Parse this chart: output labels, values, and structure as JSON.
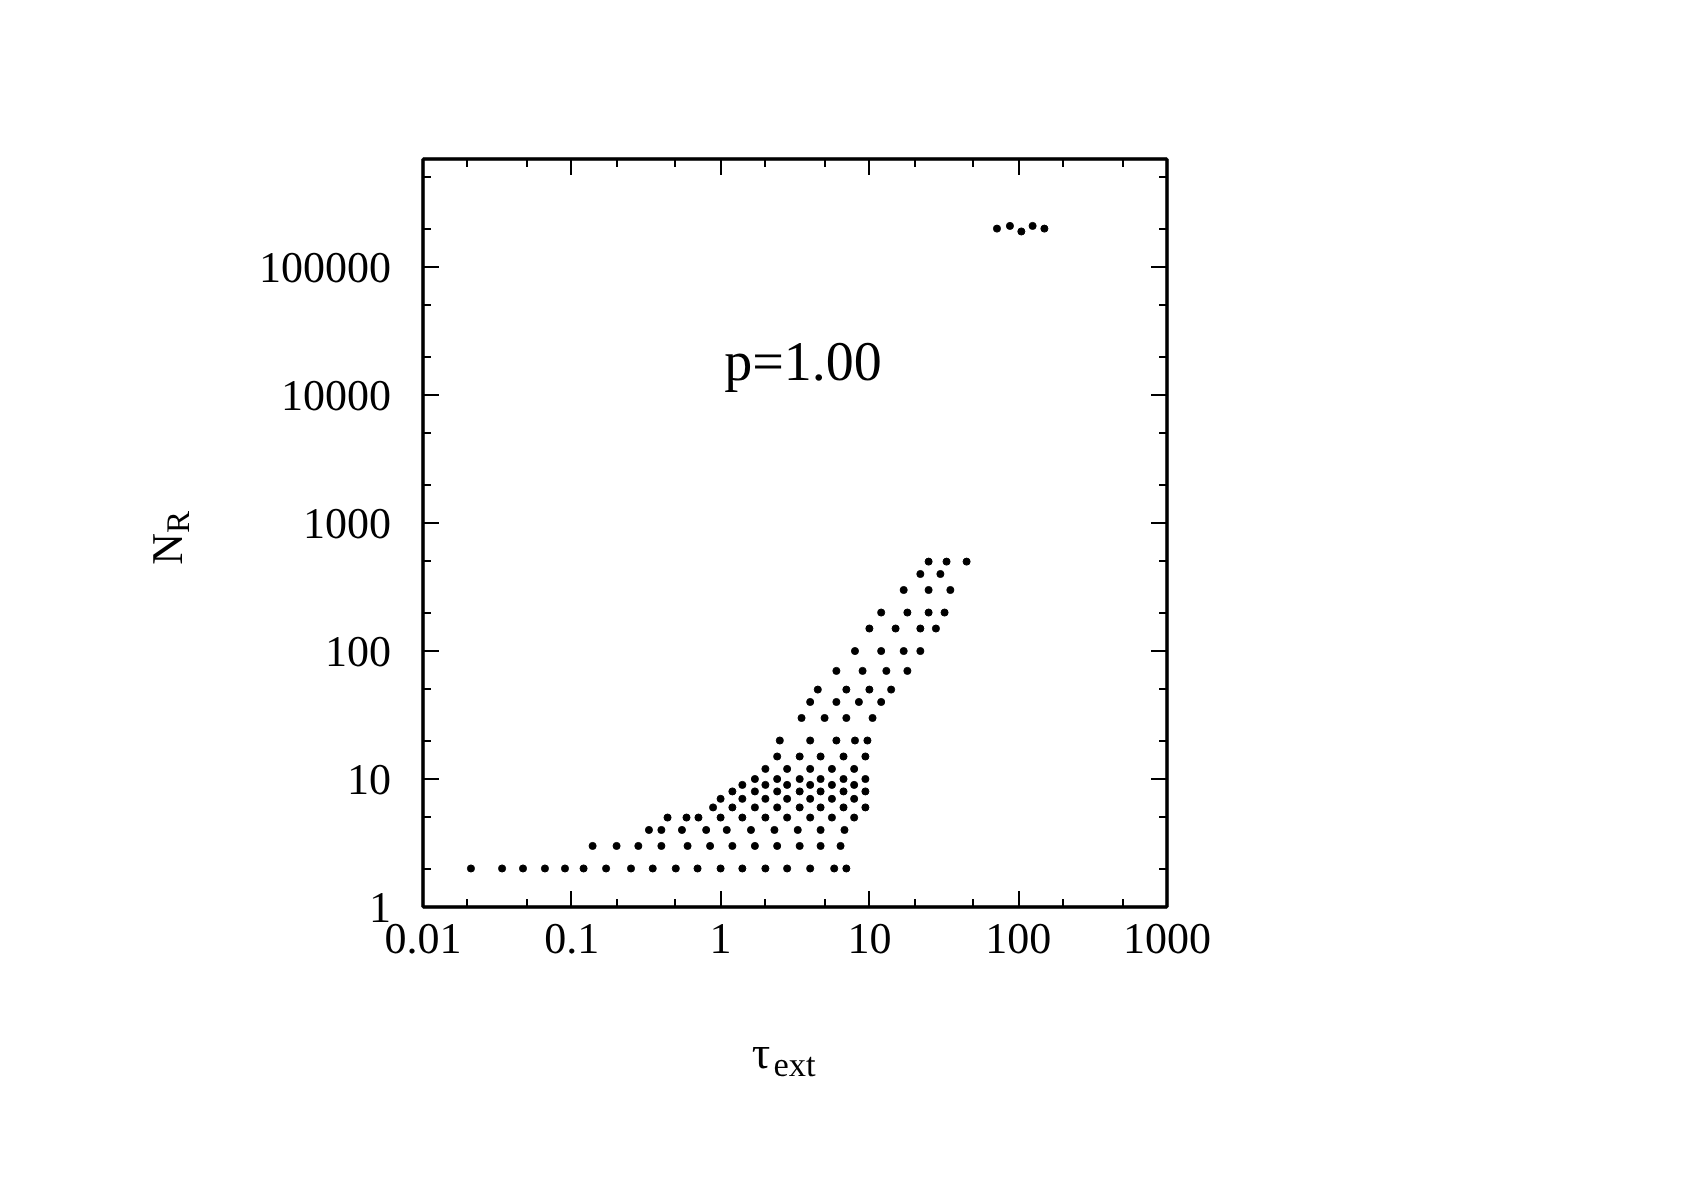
{
  "chart_data": {
    "type": "scatter",
    "xlabel": "τ$_{ext}$",
    "ylabel": "N$_{R}$",
    "annotations": [
      "p=1.00"
    ],
    "log": "xy",
    "marker": "circle",
    "xlim": [
      0.01,
      1000
    ],
    "ylim": [
      1,
      700000
    ],
    "xticks": [
      0.01,
      {
        "value": 0.02,
        "label": null
      },
      {
        "value": 0.05,
        "label": null
      },
      0.1,
      {
        "value": 0.2,
        "label": null
      },
      {
        "value": 0.5,
        "label": null
      },
      1,
      {
        "value": 2,
        "label": null
      },
      {
        "value": 5,
        "label": null
      },
      10,
      {
        "value": 20,
        "label": null
      },
      {
        "value": 50,
        "label": null
      },
      100,
      {
        "value": 200,
        "label": null
      },
      {
        "value": 500,
        "label": null
      },
      1000
    ],
    "yticks": [
      1,
      {
        "value": 2,
        "label": null
      },
      {
        "value": 5,
        "label": null
      },
      10,
      {
        "value": 20,
        "label": null
      },
      {
        "value": 50,
        "label": null
      },
      100,
      {
        "value": 200,
        "label": null
      },
      {
        "value": 500,
        "label": null
      },
      1000,
      {
        "value": 2000,
        "label": null
      },
      {
        "value": 5000,
        "label": null
      },
      10000,
      {
        "value": 20000,
        "label": null
      },
      {
        "value": 50000,
        "label": null
      },
      100000,
      {
        "value": 200000,
        "label": null
      },
      {
        "value": 500000,
        "label": null
      }
    ],
    "series": [
      {
        "color": "#000000",
        "x": [
          0.021,
          0.034,
          0.047,
          0.066,
          0.09,
          0.12,
          0.17,
          0.25,
          0.35,
          0.5,
          0.7,
          1,
          1.4,
          2,
          2.8,
          4,
          5.8,
          7,
          0.138,
          0.2,
          0.28,
          0.4,
          0.6,
          0.85,
          1.2,
          1.7,
          2.4,
          3.4,
          4.7,
          6.4,
          0.33,
          0.4,
          0.55,
          0.8,
          1.1,
          1.6,
          2.3,
          3.3,
          4.7,
          6.8,
          0.44,
          0.59,
          0.71,
          1,
          1.4,
          2,
          2.8,
          4,
          5.6,
          7.9,
          0.89,
          1.2,
          1.7,
          2.4,
          3.4,
          4.7,
          6.7,
          9.4,
          1,
          1.4,
          2,
          2.8,
          4,
          5.6,
          7.9,
          1.2,
          1.7,
          2.4,
          3.4,
          4.7,
          6.7,
          9.4,
          1.4,
          2,
          2.8,
          4,
          5.6,
          7.9,
          1.7,
          2.4,
          3.4,
          4.7,
          6.7,
          9.4,
          2,
          2.8,
          4,
          5.6,
          7.9,
          2.4,
          3.4,
          4.7,
          6.7,
          9.4,
          2.5,
          4,
          6,
          8,
          9.7,
          3.5,
          5,
          7,
          10.5,
          4,
          6,
          8.5,
          12,
          4.5,
          7,
          10,
          14,
          6,
          9,
          13,
          18,
          8,
          12,
          17,
          22,
          10,
          15,
          22,
          28,
          12,
          18,
          25,
          32,
          17,
          25,
          35,
          22,
          30,
          25,
          33,
          45,
          72,
          88,
          105,
          125,
          150
        ],
        "values": [
          2,
          2,
          2,
          2,
          2,
          2,
          2,
          2,
          2,
          2,
          2,
          2,
          2,
          2,
          2,
          2,
          2,
          2,
          3,
          3,
          3,
          3,
          3,
          3,
          3,
          3,
          3,
          3,
          3,
          3,
          4,
          4,
          4,
          4,
          4,
          4,
          4,
          4,
          4,
          4,
          5,
          5,
          5,
          5,
          5,
          5,
          5,
          5,
          5,
          5,
          6,
          6,
          6,
          6,
          6,
          6,
          6,
          6,
          7,
          7,
          7,
          7,
          7,
          7,
          7,
          8,
          8,
          8,
          8,
          8,
          8,
          8,
          9,
          9,
          9,
          9,
          9,
          9,
          10,
          10,
          10,
          10,
          10,
          10,
          12,
          12,
          12,
          12,
          12,
          15,
          15,
          15,
          15,
          15,
          20,
          20,
          20,
          20,
          20,
          30,
          30,
          30,
          30,
          40,
          40,
          40,
          40,
          50,
          50,
          50,
          50,
          70,
          70,
          70,
          70,
          100,
          100,
          100,
          100,
          150,
          150,
          150,
          150,
          200,
          200,
          200,
          200,
          300,
          300,
          300,
          400,
          400,
          500,
          500,
          500,
          200000,
          210000,
          190000,
          210000,
          200000
        ]
      }
    ]
  }
}
